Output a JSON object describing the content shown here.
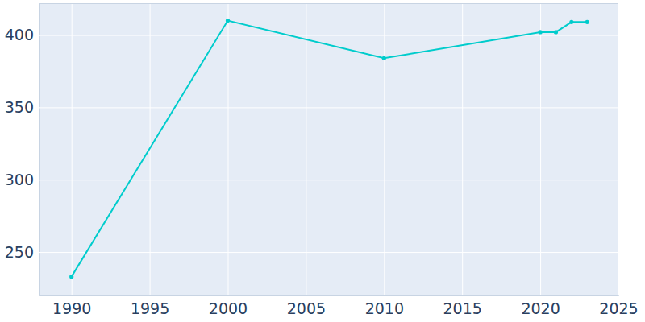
{
  "chart_data": {
    "type": "line",
    "x": [
      1990,
      2000,
      2010,
      2020,
      2021,
      2022,
      2023
    ],
    "values": [
      233,
      410,
      384,
      402,
      402,
      409,
      409
    ],
    "color": "#00cccc",
    "marker": "circle",
    "xlim": [
      1987.9,
      2025
    ],
    "xticks": [
      1990,
      1995,
      2000,
      2005,
      2010,
      2015,
      2020,
      2025
    ],
    "ylim": [
      220,
      422
    ],
    "yticks": [
      250,
      300,
      350,
      400
    ],
    "grid": true
  }
}
